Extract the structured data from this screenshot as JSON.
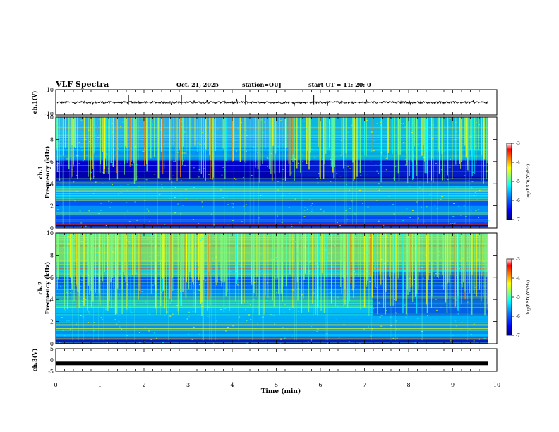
{
  "header": {
    "title": "VLF Spectra",
    "date": "Oct. 21, 2025",
    "station": "station=OUJ",
    "start_ut": "start UT =  11: 20: 0"
  },
  "chart_data": [
    {
      "type": "line",
      "panel": "ch1-waveform",
      "ylabel": "ch.1(V)",
      "ylim": [
        -10,
        10
      ],
      "ytick_labels": [
        "10",
        "-10"
      ],
      "x_range_min": [
        0,
        9.8
      ],
      "series": [
        {
          "values_description": "noise around 0 V, amplitude approx ±1 V with impulsive spikes",
          "baseline": 0
        }
      ]
    },
    {
      "type": "heatmap",
      "panel": "ch1-spectrogram",
      "ylabel_line1": "ch.1",
      "ylabel_line2": "Frequency (kHz)",
      "ylim": [
        0,
        10
      ],
      "ytick_labels": [
        "0",
        "2",
        "4",
        "6",
        "8",
        "10"
      ],
      "x_range_min": [
        0,
        9.8
      ],
      "colorbar": {
        "label": "log(PSD)(V²/Hz)",
        "range": [
          -7,
          -3
        ],
        "tick_labels": [
          "-3",
          "-4",
          "-5",
          "-6",
          "-7"
        ]
      }
    },
    {
      "type": "heatmap",
      "panel": "ch2-spectrogram",
      "ylabel_line1": "ch.2",
      "ylabel_line2": "Frequency (kHz)",
      "ylim": [
        0,
        10
      ],
      "ytick_labels": [
        "0",
        "2",
        "4",
        "6",
        "8",
        "10"
      ],
      "x_range_min": [
        0,
        9.8
      ],
      "colorbar": {
        "label": "log(PSD)(V²/Hz)",
        "range": [
          -7,
          -3
        ],
        "tick_labels": [
          "-3",
          "-4",
          "-5",
          "-6",
          "-7"
        ]
      }
    },
    {
      "type": "line",
      "panel": "ch3-waveform",
      "ylabel": "ch.3(V)",
      "ylim": [
        -5,
        5
      ],
      "ytick_labels": [
        "5",
        "0",
        "-5"
      ],
      "x_range_min": [
        0,
        9.8
      ],
      "series": [
        {
          "values_description": "near-constant level",
          "level": -1.5
        }
      ]
    }
  ],
  "xaxis": {
    "label": "Time (min)",
    "xlim": [
      0,
      10
    ],
    "tick_labels": [
      "0",
      "1",
      "2",
      "3",
      "4",
      "5",
      "6",
      "7",
      "8",
      "9",
      "10"
    ]
  },
  "colors": {
    "colormap": [
      "#00007f",
      "#0000ff",
      "#007fff",
      "#00ffff",
      "#7fff7f",
      "#ffff00",
      "#ff7f00",
      "#ff0000",
      "#ffffff"
    ]
  }
}
